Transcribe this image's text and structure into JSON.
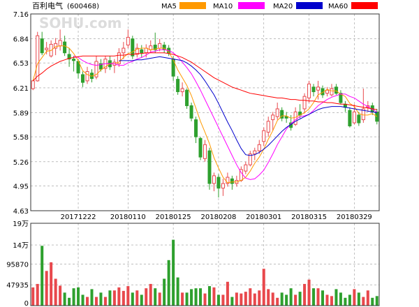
{
  "header": {
    "title": "百利电气",
    "code": "(600468)",
    "watermark": "SOHU.com"
  },
  "legend": [
    {
      "name": "MA5",
      "color": "#FF9900"
    },
    {
      "name": "MA10",
      "color": "#FF00FF"
    },
    {
      "name": "MA20",
      "color": "#0000CC"
    },
    {
      "name": "MA60",
      "color": "#FF0000"
    }
  ],
  "colors": {
    "up": "#E8484C",
    "down": "#2EA02E",
    "grid": "#999999",
    "frame": "#333333"
  },
  "chart_data": [
    {
      "type": "candlestick",
      "name": "price",
      "ylim": [
        4.63,
        7.16
      ],
      "y_ticks": [
        "7.16",
        "6.84",
        "6.53",
        "6.21",
        "5.89",
        "5.58",
        "5.26",
        "4.95",
        "4.63"
      ],
      "x_tick_labels": [
        {
          "index": 10,
          "label": "20171222"
        },
        {
          "index": 21,
          "label": "20180110"
        },
        {
          "index": 31,
          "label": "20180125"
        },
        {
          "index": 41,
          "label": "20180208"
        },
        {
          "index": 51,
          "label": "20180301"
        },
        {
          "index": 61,
          "label": "20180315"
        },
        {
          "index": 71,
          "label": "20180329"
        }
      ],
      "candles": [
        [
          6.2,
          6.3,
          6.18,
          6.31
        ],
        [
          6.3,
          6.88,
          6.29,
          6.93
        ],
        [
          6.84,
          6.66,
          6.63,
          6.93
        ],
        [
          6.7,
          6.72,
          6.64,
          6.8
        ],
        [
          6.62,
          6.77,
          6.6,
          6.82
        ],
        [
          6.72,
          6.78,
          6.63,
          6.85
        ],
        [
          6.75,
          6.82,
          6.69,
          6.96
        ],
        [
          6.8,
          6.66,
          6.62,
          6.88
        ],
        [
          6.64,
          6.58,
          6.48,
          6.72
        ],
        [
          6.58,
          6.56,
          6.42,
          6.62
        ],
        [
          6.55,
          6.4,
          6.33,
          6.58
        ],
        [
          6.38,
          6.28,
          6.22,
          6.42
        ],
        [
          6.3,
          6.42,
          6.26,
          6.48
        ],
        [
          6.4,
          6.33,
          6.28,
          6.45
        ],
        [
          6.35,
          6.55,
          6.32,
          6.62
        ],
        [
          6.52,
          6.45,
          6.42,
          6.58
        ],
        [
          6.46,
          6.58,
          6.4,
          6.62
        ],
        [
          6.56,
          6.48,
          6.44,
          6.62
        ],
        [
          6.5,
          6.54,
          6.4,
          6.58
        ],
        [
          6.52,
          6.66,
          6.48,
          6.72
        ],
        [
          6.66,
          6.72,
          6.58,
          6.8
        ],
        [
          6.76,
          6.86,
          6.72,
          6.96
        ],
        [
          6.84,
          6.62,
          6.58,
          6.88
        ],
        [
          6.64,
          6.72,
          6.6,
          6.78
        ],
        [
          6.7,
          6.66,
          6.6,
          6.76
        ],
        [
          6.66,
          6.72,
          6.6,
          6.77
        ],
        [
          6.7,
          6.75,
          6.66,
          6.82
        ],
        [
          6.76,
          6.7,
          6.66,
          6.92
        ],
        [
          6.72,
          6.78,
          6.68,
          6.84
        ],
        [
          6.76,
          6.7,
          6.66,
          6.8
        ],
        [
          6.72,
          6.66,
          6.62,
          6.76
        ],
        [
          6.58,
          6.36,
          6.3,
          6.62
        ],
        [
          6.32,
          6.16,
          6.12,
          6.36
        ],
        [
          6.16,
          6.2,
          6.1,
          6.28
        ],
        [
          6.18,
          5.98,
          5.94,
          6.2
        ],
        [
          5.98,
          5.82,
          5.78,
          6.02
        ],
        [
          5.8,
          5.58,
          5.5,
          5.84
        ],
        [
          5.56,
          5.32,
          5.28,
          5.58
        ],
        [
          5.3,
          5.48,
          5.26,
          5.54
        ],
        [
          5.4,
          4.98,
          4.9,
          5.44
        ],
        [
          4.98,
          5.08,
          4.88,
          5.12
        ],
        [
          5.06,
          4.92,
          4.8,
          5.1
        ],
        [
          4.92,
          4.98,
          4.82,
          5.04
        ],
        [
          4.98,
          5.06,
          4.94,
          5.12
        ],
        [
          5.04,
          4.98,
          4.9,
          5.08
        ],
        [
          4.98,
          5.02,
          4.94,
          5.08
        ],
        [
          5.02,
          5.16,
          5.0,
          5.2
        ],
        [
          5.14,
          5.22,
          5.1,
          5.26
        ],
        [
          5.22,
          5.36,
          5.2,
          5.4
        ],
        [
          5.36,
          5.4,
          5.28,
          5.44
        ],
        [
          5.4,
          5.48,
          5.36,
          5.54
        ],
        [
          5.52,
          5.66,
          5.46,
          5.7
        ],
        [
          5.64,
          5.78,
          5.58,
          5.84
        ],
        [
          5.8,
          5.86,
          5.66,
          5.9
        ],
        [
          5.84,
          5.94,
          5.8,
          6.02
        ],
        [
          5.92,
          5.82,
          5.78,
          5.96
        ],
        [
          5.84,
          5.82,
          5.76,
          5.9
        ],
        [
          5.76,
          5.7,
          5.66,
          5.86
        ],
        [
          5.74,
          5.9,
          5.72,
          5.96
        ],
        [
          5.9,
          5.86,
          5.82,
          6.0
        ],
        [
          5.94,
          6.1,
          5.88,
          6.14
        ],
        [
          6.08,
          6.26,
          6.02,
          6.3
        ],
        [
          6.22,
          6.16,
          6.1,
          6.26
        ],
        [
          6.18,
          6.22,
          6.06,
          6.3
        ],
        [
          6.2,
          6.12,
          6.08,
          6.24
        ],
        [
          6.14,
          6.18,
          6.1,
          6.22
        ],
        [
          6.12,
          6.2,
          6.1,
          6.26
        ],
        [
          6.22,
          6.14,
          6.12,
          6.26
        ],
        [
          6.14,
          6.02,
          6.0,
          6.18
        ],
        [
          6.0,
          5.96,
          5.9,
          6.04
        ],
        [
          5.92,
          5.72,
          5.7,
          5.96
        ],
        [
          5.76,
          5.9,
          5.74,
          6.0
        ],
        [
          5.86,
          5.76,
          5.72,
          5.9
        ],
        [
          5.8,
          5.94,
          5.76,
          6.2
        ],
        [
          5.96,
          5.98,
          5.9,
          6.04
        ],
        [
          5.98,
          5.9,
          5.86,
          6.02
        ],
        [
          5.9,
          5.78,
          5.74,
          5.94
        ]
      ],
      "ma5": [
        6.3,
        6.52,
        6.6,
        6.68,
        6.69,
        6.74,
        6.75,
        6.75,
        6.72,
        6.65,
        6.56,
        6.43,
        6.38,
        6.36,
        6.38,
        6.44,
        6.48,
        6.52,
        6.52,
        6.54,
        6.6,
        6.65,
        6.67,
        6.71,
        6.72,
        6.72,
        6.7,
        6.71,
        6.72,
        6.72,
        6.67,
        6.57,
        6.44,
        6.34,
        6.24,
        6.11,
        5.95,
        5.78,
        5.64,
        5.49,
        5.31,
        5.18,
        5.06,
        4.99,
        5.0,
        5.0,
        5.02,
        5.06,
        5.14,
        5.24,
        5.32,
        5.42,
        5.55,
        5.66,
        5.79,
        5.85,
        5.85,
        5.82,
        5.83,
        5.86,
        5.89,
        5.94,
        6.02,
        6.12,
        6.15,
        6.19,
        6.17,
        6.17,
        6.13,
        6.1,
        6.01,
        5.97,
        5.88,
        5.86,
        5.86,
        5.88,
        5.84
      ],
      "ma10": [
        null,
        null,
        null,
        null,
        null,
        null,
        null,
        null,
        null,
        6.62,
        6.6,
        6.56,
        6.53,
        6.51,
        6.5,
        6.51,
        6.52,
        6.52,
        6.52,
        6.5,
        6.5,
        6.53,
        6.55,
        6.58,
        6.6,
        6.63,
        6.67,
        6.68,
        6.7,
        6.7,
        6.69,
        6.66,
        6.61,
        6.54,
        6.47,
        6.39,
        6.29,
        6.18,
        6.06,
        5.94,
        5.82,
        5.7,
        5.58,
        5.46,
        5.34,
        5.22,
        5.12,
        5.05,
        5.03,
        5.04,
        5.09,
        5.15,
        5.25,
        5.36,
        5.48,
        5.58,
        5.68,
        5.75,
        5.8,
        5.84,
        5.85,
        5.87,
        5.92,
        5.98,
        6.02,
        6.06,
        6.09,
        6.11,
        6.13,
        6.13,
        6.1,
        6.08,
        6.04,
        6.0,
        5.97,
        5.93,
        5.9
      ],
      "ma20": [
        null,
        null,
        null,
        null,
        null,
        null,
        null,
        null,
        null,
        null,
        null,
        null,
        null,
        null,
        null,
        null,
        null,
        null,
        null,
        6.56,
        6.56,
        6.56,
        6.56,
        6.57,
        6.57,
        6.58,
        6.59,
        6.6,
        6.61,
        6.6,
        6.59,
        6.58,
        6.57,
        6.56,
        6.53,
        6.49,
        6.44,
        6.38,
        6.3,
        6.21,
        6.12,
        6.01,
        5.89,
        5.77,
        5.66,
        5.54,
        5.43,
        5.35,
        5.34,
        5.35,
        5.38,
        5.42,
        5.47,
        5.53,
        5.59,
        5.65,
        5.7,
        5.74,
        5.78,
        5.81,
        5.84,
        5.87,
        5.9,
        5.93,
        5.95,
        5.96,
        5.97,
        5.97,
        5.97,
        5.96,
        5.95,
        5.94,
        5.93,
        5.92,
        5.91,
        5.9,
        5.89
      ],
      "ma60": [
        6.3,
        6.36,
        6.4,
        6.45,
        6.49,
        6.52,
        6.55,
        6.57,
        6.59,
        6.6,
        6.61,
        6.62,
        6.62,
        6.62,
        6.62,
        6.62,
        6.62,
        6.62,
        6.62,
        6.63,
        6.63,
        6.64,
        6.64,
        6.65,
        6.65,
        6.66,
        6.66,
        6.66,
        6.66,
        6.66,
        6.65,
        6.64,
        6.62,
        6.6,
        6.57,
        6.54,
        6.5,
        6.46,
        6.42,
        6.38,
        6.34,
        6.31,
        6.28,
        6.25,
        6.22,
        6.2,
        6.18,
        6.16,
        6.14,
        6.13,
        6.12,
        6.11,
        6.1,
        6.09,
        6.08,
        6.08,
        6.07,
        6.06,
        6.06,
        6.05,
        6.05,
        6.04,
        6.04,
        6.03,
        6.03,
        6.02,
        6.02,
        6.01,
        6.0,
        6.0,
        5.99,
        5.98,
        5.97,
        5.96,
        5.95,
        5.94,
        5.93
      ]
    },
    {
      "type": "bar",
      "name": "volume",
      "ylim": [
        0,
        190000
      ],
      "y_ticks": [
        {
          "value": 190000,
          "label": "19万"
        },
        {
          "value": 140000,
          "label": "14万"
        },
        {
          "value": 95870,
          "label": "95870"
        },
        {
          "value": 47935,
          "label": "47935"
        },
        {
          "value": 0,
          "label": "0"
        }
      ],
      "values": [
        42000,
        50000,
        138000,
        80000,
        100000,
        62000,
        46000,
        30000,
        18000,
        40000,
        42000,
        25000,
        20000,
        38000,
        20000,
        30000,
        20000,
        35000,
        35000,
        42000,
        34000,
        45000,
        30000,
        35000,
        25000,
        40000,
        50000,
        40000,
        30000,
        62000,
        105000,
        152000,
        65000,
        30000,
        30000,
        38000,
        40000,
        40000,
        28000,
        45000,
        42000,
        25000,
        25000,
        55000,
        20000,
        30000,
        28000,
        32000,
        40000,
        28000,
        35000,
        85000,
        38000,
        30000,
        18000,
        30000,
        25000,
        40000,
        25000,
        32000,
        50000,
        60000,
        40000,
        40000,
        35000,
        25000,
        22000,
        38000,
        30000,
        18000,
        25000,
        38000,
        30000,
        20000,
        35000,
        18000,
        22000
      ]
    }
  ]
}
